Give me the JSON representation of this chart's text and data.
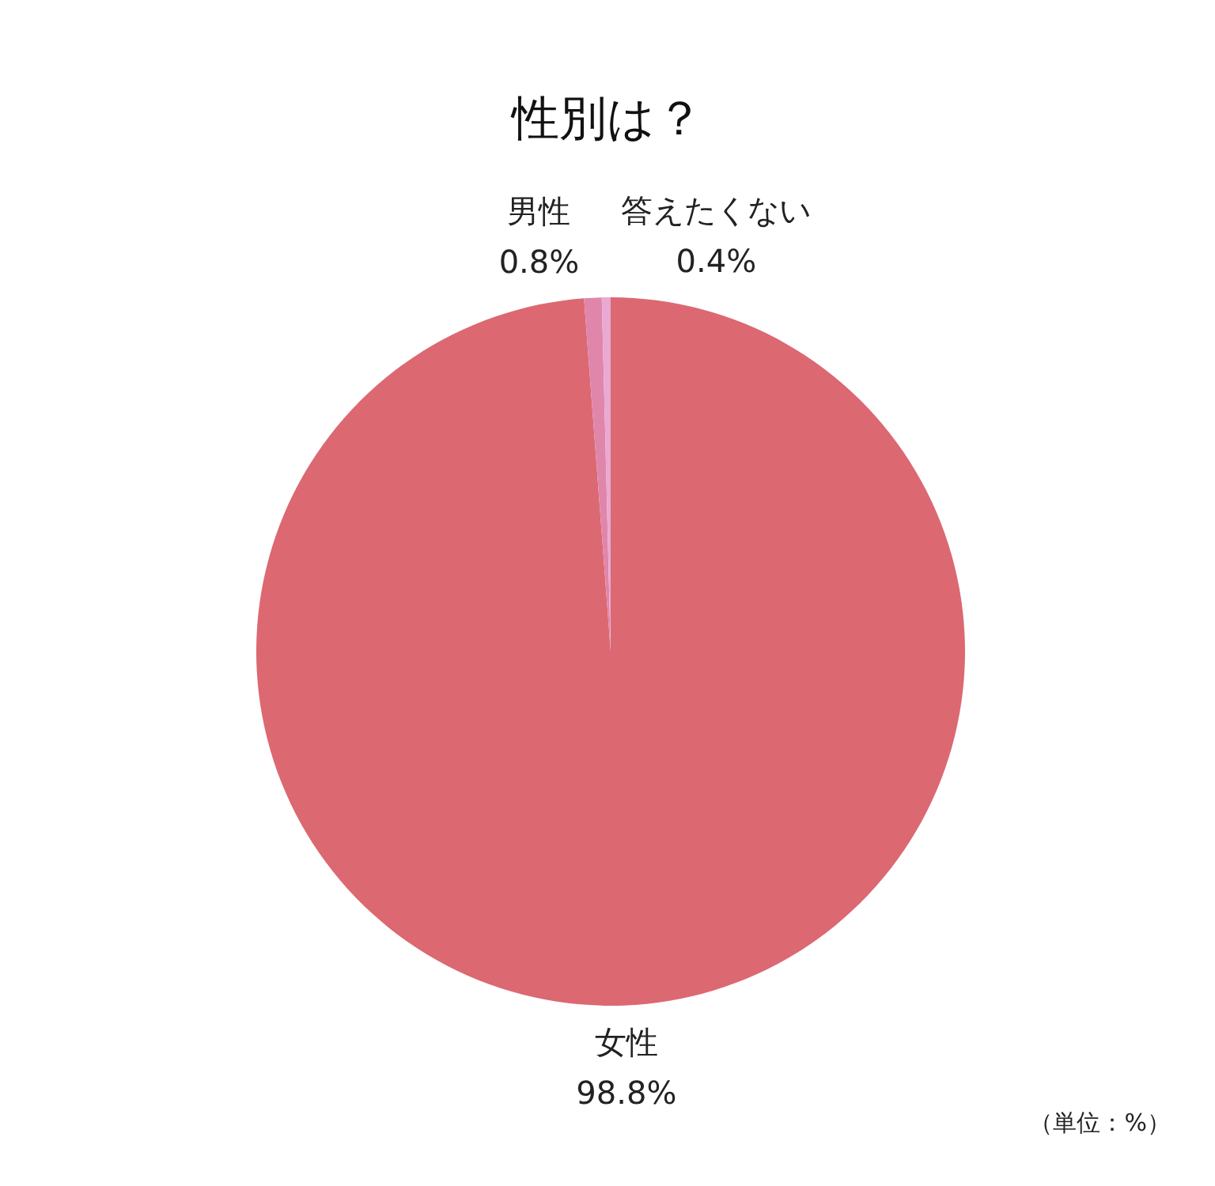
{
  "chart_data": {
    "type": "pie",
    "title": "性別は？",
    "categories": [
      "女性",
      "男性",
      "答えたくない"
    ],
    "values": [
      98.8,
      0.8,
      0.4
    ],
    "colors": [
      "#dc6872",
      "#e086ab",
      "#e9a9d2"
    ],
    "value_labels": [
      "98.8%",
      "0.8%",
      "0.4%"
    ],
    "annotations": [
      "（単位：%）"
    ]
  }
}
